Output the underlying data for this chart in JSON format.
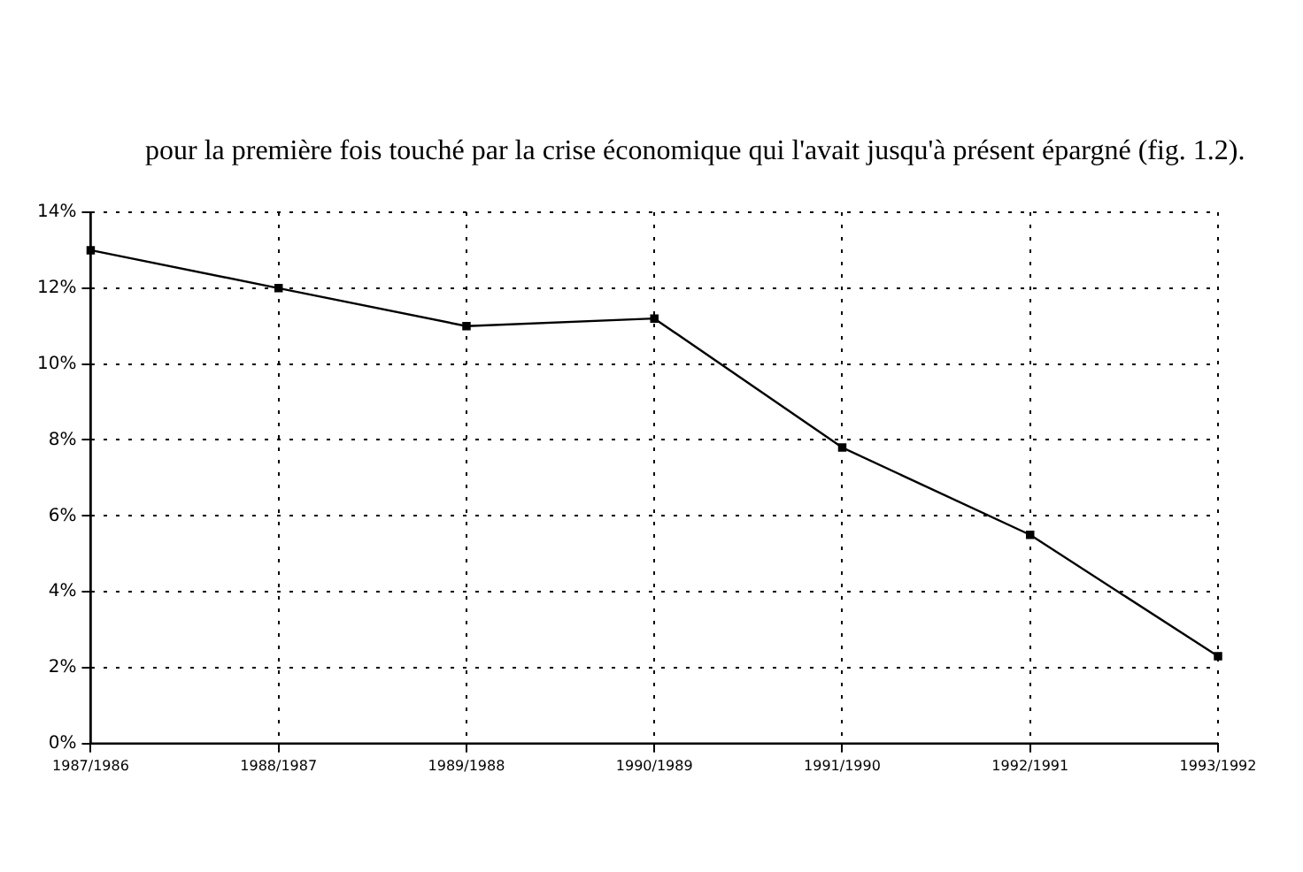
{
  "chart_data": {
    "type": "line",
    "annotations": [
      "pour la première fois touché par la crise économique qui l'avait jusqu'à présent épargné (fig. 1.2)."
    ],
    "categories": [
      "1987/1986",
      "1988/1987",
      "1989/1988",
      "1990/1989",
      "1991/1990",
      "1992/1991",
      "1993/1992"
    ],
    "series": [
      {
        "color": "#000000",
        "values": [
          13,
          12,
          11,
          11.2,
          7.8,
          5.5,
          2.3
        ]
      }
    ],
    "ylim": [
      0,
      14
    ],
    "yticks": [
      {
        "value": 0,
        "label": "0%"
      },
      {
        "value": 2,
        "label": "2%"
      },
      {
        "value": 4,
        "label": "4%"
      },
      {
        "value": 6,
        "label": "6%"
      },
      {
        "value": 8,
        "label": "8%"
      },
      {
        "value": 10,
        "label": "10%"
      },
      {
        "value": 12,
        "label": "12%"
      },
      {
        "value": 14,
        "label": "14%"
      }
    ],
    "grid": true,
    "legend": false,
    "marker": "square",
    "line_style": "solid"
  }
}
